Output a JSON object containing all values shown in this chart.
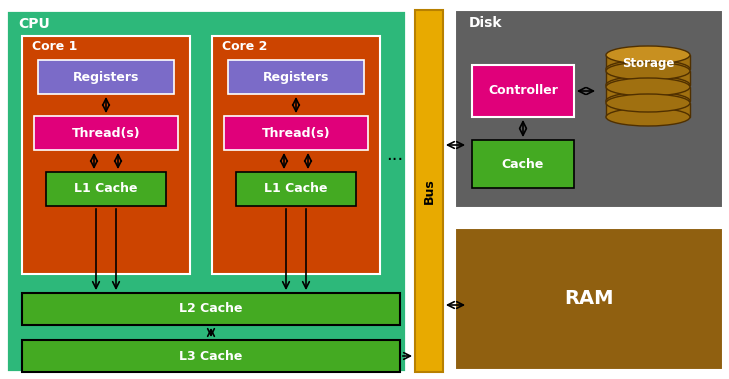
{
  "colors": {
    "cpu_bg": "#2db87a",
    "core_bg": "#cc4400",
    "registers": "#7b6bc8",
    "threads": "#e0007a",
    "l1_cache": "#44aa22",
    "l2_cache": "#44aa22",
    "l3_cache": "#44aa22",
    "bus": "#e8aa00",
    "disk_bg": "#606060",
    "controller": "#e0007a",
    "disk_cache": "#44aa22",
    "storage_top": "#c89020",
    "storage_body": "#a07010",
    "storage_edge": "#503000",
    "ram_bg": "#906010",
    "white": "#ffffff",
    "black": "#000000",
    "bg": "#ffffff"
  },
  "labels": {
    "cpu": "CPU",
    "core1": "Core 1",
    "core2": "Core 2",
    "registers": "Registers",
    "threads": "Thread(s)",
    "l1_cache": "L1 Cache",
    "l2_cache": "L2 Cache",
    "l3_cache": "L3 Cache",
    "bus": "Bus",
    "disk": "Disk",
    "controller": "Controller",
    "disk_cache": "Cache",
    "storage": "Storage",
    "ram": "RAM",
    "dots": "..."
  },
  "layout": {
    "fig_w": 7.29,
    "fig_h": 3.79,
    "dpi": 100
  }
}
